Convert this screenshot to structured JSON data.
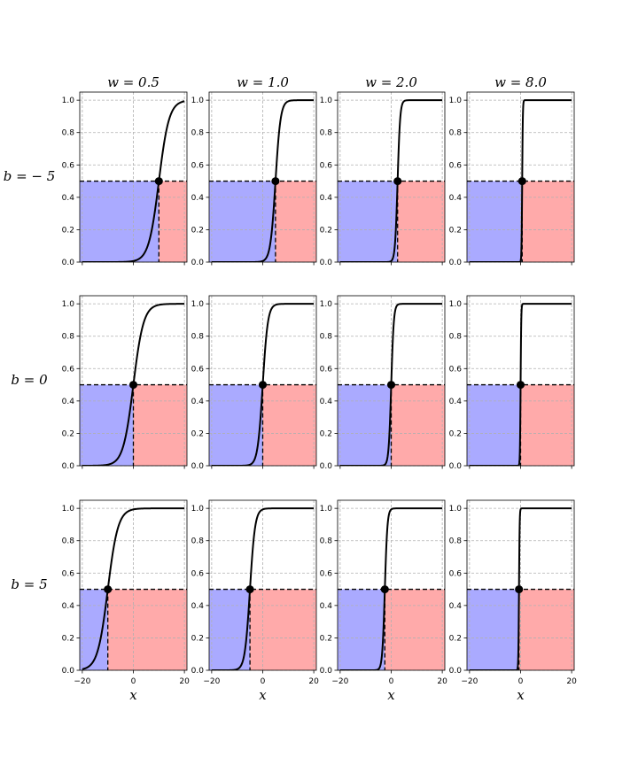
{
  "chart_data": {
    "type": "line",
    "function": "sigmoid",
    "columns": [
      {
        "w": 0.5,
        "title": "w = 0.5"
      },
      {
        "w": 1.0,
        "title": "w = 1.0"
      },
      {
        "w": 2.0,
        "title": "w = 2.0"
      },
      {
        "w": 8.0,
        "title": "w = 8.0"
      }
    ],
    "rows": [
      {
        "b": -5,
        "label": "b = − 5"
      },
      {
        "b": 0,
        "label": "b = 0"
      },
      {
        "b": 5,
        "label": "b = 5"
      }
    ],
    "xlabel": "x",
    "xlim": [
      -21,
      21
    ],
    "ylim": [
      0,
      1.05
    ],
    "xticks": [
      -20,
      0,
      20
    ],
    "xtick_labels": [
      "−20",
      "0",
      "20"
    ],
    "yticks": [
      0.0,
      0.2,
      0.4,
      0.6,
      0.8,
      1.0
    ],
    "ytick_labels": [
      "0.0",
      "0.2",
      "0.4",
      "0.6",
      "0.8",
      "1.0"
    ],
    "threshold": 0.5,
    "grid": true,
    "colors": {
      "curve": "#000000",
      "left_region": "#aaaaff",
      "right_region": "#ffaaaa",
      "grid": "#b0b0b0",
      "marker": "#000000"
    }
  }
}
